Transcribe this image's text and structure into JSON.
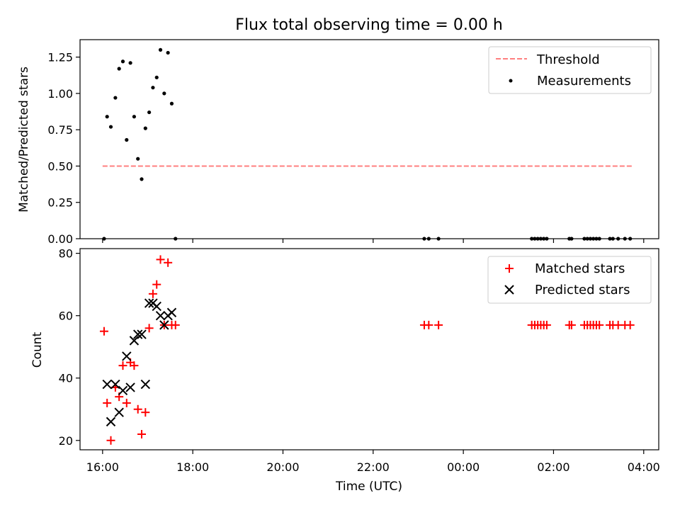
{
  "chart_data": [
    {
      "type": "scatter",
      "title": "Flux total observing time = 0.00 h",
      "xlabel": "",
      "ylabel": "Matched/Predicted stars",
      "xlim": [
        "15:30",
        "04:20"
      ],
      "ylim": [
        0,
        1.37
      ],
      "yticks": [
        "0.00",
        "0.25",
        "0.50",
        "0.75",
        "1.00",
        "1.25"
      ],
      "ytick_values": [
        0,
        0.25,
        0.5,
        0.75,
        1.0,
        1.25
      ],
      "xticks": [
        "16:00",
        "18:00",
        "20:00",
        "22:00",
        "00:00",
        "02:00",
        "04:00"
      ],
      "threshold": {
        "name": "Threshold",
        "value": 0.5,
        "x": [
          "16:00",
          "03:45"
        ],
        "color": "#ff7f7f"
      },
      "series": [
        {
          "name": "Measurements",
          "color": "#000000",
          "points": [
            [
              "16:02",
              0.0
            ],
            [
              "16:06",
              0.84
            ],
            [
              "16:11",
              0.77
            ],
            [
              "16:17",
              0.97
            ],
            [
              "16:22",
              1.17
            ],
            [
              "16:27",
              1.22
            ],
            [
              "16:32",
              0.68
            ],
            [
              "16:37",
              1.21
            ],
            [
              "16:42",
              0.84
            ],
            [
              "16:47",
              0.55
            ],
            [
              "16:52",
              0.41
            ],
            [
              "16:57",
              0.76
            ],
            [
              "17:02",
              0.87
            ],
            [
              "17:07",
              1.04
            ],
            [
              "17:12",
              1.11
            ],
            [
              "17:17",
              1.3
            ],
            [
              "17:22",
              1.0
            ],
            [
              "17:27",
              1.28
            ],
            [
              "17:32",
              0.93
            ],
            [
              "17:37",
              0.0
            ],
            [
              "23:08",
              0.0
            ],
            [
              "23:14",
              0.0
            ],
            [
              "23:27",
              0.0
            ],
            [
              "01:31",
              0.0
            ],
            [
              "01:35",
              0.0
            ],
            [
              "01:39",
              0.0
            ],
            [
              "01:43",
              0.0
            ],
            [
              "01:47",
              0.0
            ],
            [
              "01:51",
              0.0
            ],
            [
              "02:21",
              0.0
            ],
            [
              "02:24",
              0.0
            ],
            [
              "02:41",
              0.0
            ],
            [
              "02:45",
              0.0
            ],
            [
              "02:49",
              0.0
            ],
            [
              "02:53",
              0.0
            ],
            [
              "02:57",
              0.0
            ],
            [
              "03:01",
              0.0
            ],
            [
              "03:15",
              0.0
            ],
            [
              "03:19",
              0.0
            ],
            [
              "03:26",
              0.0
            ],
            [
              "03:35",
              0.0
            ],
            [
              "03:42",
              0.0
            ]
          ]
        }
      ],
      "legend": [
        "Threshold",
        "Measurements"
      ],
      "legend_position": "upper right",
      "grid": false
    },
    {
      "type": "scatter",
      "title": "",
      "xlabel": "Time (UTC)",
      "ylabel": "Count",
      "xlim": [
        "15:30",
        "04:20"
      ],
      "ylim": [
        17,
        81.5
      ],
      "yticks": [
        "20",
        "40",
        "60",
        "80"
      ],
      "ytick_values": [
        20,
        40,
        60,
        80
      ],
      "xticks": [
        "16:00",
        "18:00",
        "20:00",
        "22:00",
        "00:00",
        "02:00",
        "04:00"
      ],
      "series": [
        {
          "name": "Matched stars",
          "marker": "+",
          "color": "#ff0000",
          "points": [
            [
              "16:02",
              55
            ],
            [
              "16:06",
              32
            ],
            [
              "16:11",
              20
            ],
            [
              "16:17",
              37
            ],
            [
              "16:22",
              34
            ],
            [
              "16:27",
              44
            ],
            [
              "16:32",
              32
            ],
            [
              "16:37",
              45
            ],
            [
              "16:42",
              44
            ],
            [
              "16:47",
              30
            ],
            [
              "16:52",
              22
            ],
            [
              "16:57",
              29
            ],
            [
              "17:02",
              56
            ],
            [
              "17:07",
              67
            ],
            [
              "17:12",
              70
            ],
            [
              "17:17",
              78
            ],
            [
              "17:22",
              57
            ],
            [
              "17:27",
              77
            ],
            [
              "17:32",
              57
            ],
            [
              "17:37",
              57
            ],
            [
              "23:08",
              57
            ],
            [
              "23:14",
              57
            ],
            [
              "23:27",
              57
            ],
            [
              "01:31",
              57
            ],
            [
              "01:35",
              57
            ],
            [
              "01:39",
              57
            ],
            [
              "01:43",
              57
            ],
            [
              "01:47",
              57
            ],
            [
              "01:51",
              57
            ],
            [
              "02:21",
              57
            ],
            [
              "02:24",
              57
            ],
            [
              "02:41",
              57
            ],
            [
              "02:45",
              57
            ],
            [
              "02:49",
              57
            ],
            [
              "02:53",
              57
            ],
            [
              "02:57",
              57
            ],
            [
              "03:01",
              57
            ],
            [
              "03:15",
              57
            ],
            [
              "03:19",
              57
            ],
            [
              "03:26",
              57
            ],
            [
              "03:35",
              57
            ],
            [
              "03:42",
              57
            ]
          ]
        },
        {
          "name": "Predicted stars",
          "marker": "x",
          "color": "#000000",
          "points": [
            [
              "16:06",
              38
            ],
            [
              "16:11",
              26
            ],
            [
              "16:17",
              38
            ],
            [
              "16:22",
              29
            ],
            [
              "16:27",
              36
            ],
            [
              "16:32",
              47
            ],
            [
              "16:37",
              37
            ],
            [
              "16:42",
              52
            ],
            [
              "16:47",
              54
            ],
            [
              "16:52",
              54
            ],
            [
              "16:57",
              38
            ],
            [
              "17:02",
              64
            ],
            [
              "17:07",
              64
            ],
            [
              "17:12",
              63
            ],
            [
              "17:17",
              60
            ],
            [
              "17:22",
              57
            ],
            [
              "17:27",
              60
            ],
            [
              "17:32",
              61
            ]
          ]
        }
      ],
      "legend": [
        "Matched stars",
        "Predicted stars"
      ],
      "legend_position": "upper right",
      "grid": false
    }
  ]
}
